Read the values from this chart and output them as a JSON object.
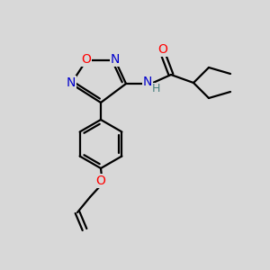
{
  "bg_color": "#d8d8d8",
  "atom_colors": {
    "C": "#000000",
    "N": "#0000cc",
    "O": "#ff0000",
    "H": "#4a8080"
  },
  "bond_color": "#000000",
  "fig_size": [
    3.0,
    3.0
  ],
  "dpi": 100
}
